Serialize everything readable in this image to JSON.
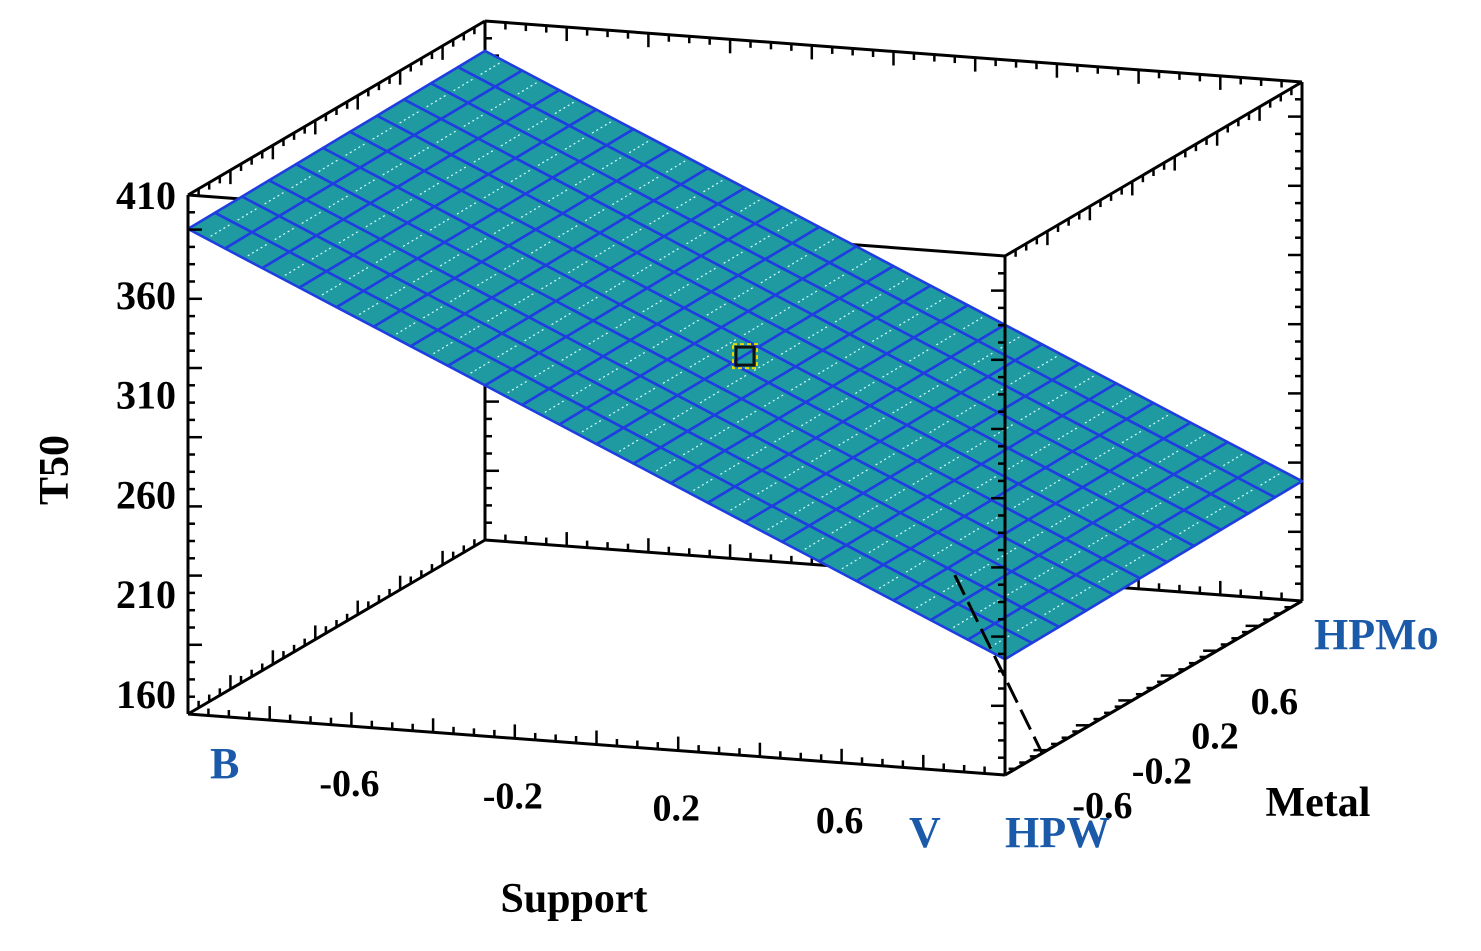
{
  "chart_data": {
    "type": "surface",
    "zlabel": "T50",
    "xlabel": "Support",
    "ylabel": "Metal",
    "z_ticks": [
      "160",
      "210",
      "260",
      "310",
      "360",
      "410"
    ],
    "x_ticks": [
      "-0.6",
      "-0.2",
      "0.2",
      "0.6"
    ],
    "y_ticks": [
      "-0.6",
      "-0.2",
      "0.2",
      "0.6"
    ],
    "x_category_labels": {
      "low": "B",
      "high": "V"
    },
    "y_category_labels": {
      "low": "HPW",
      "high": "HPMo"
    },
    "xlim": [
      -1,
      1
    ],
    "ylim": [
      -1,
      1
    ],
    "zlim": [
      150,
      410
    ],
    "surface_corners": [
      {
        "x": -1,
        "y": -1,
        "z": 393
      },
      {
        "x": 1,
        "y": -1,
        "z": 208
      },
      {
        "x": -1,
        "y": 1,
        "z": 395
      },
      {
        "x": 1,
        "y": 1,
        "z": 210
      }
    ],
    "design_point": {
      "x": 0,
      "y": 0,
      "z": 301
    },
    "surface_color": "#1e9aa0",
    "grid_color": "#1f3de0",
    "grid": true
  }
}
